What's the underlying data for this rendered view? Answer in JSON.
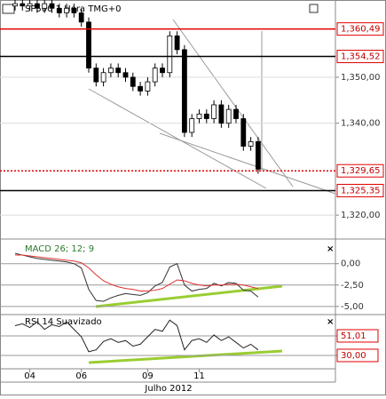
{
  "chart_data": [
    {
      "type": "candlestick",
      "title": "SP500 1 Hora TMG+0",
      "x_caption": "Julho 2012",
      "categories": [
        null,
        null,
        "04",
        null,
        null,
        null,
        null,
        null,
        null,
        "06",
        null,
        null,
        null,
        null,
        null,
        null,
        null,
        null,
        "09",
        null,
        null,
        null,
        null,
        null,
        null,
        "11",
        null,
        null,
        null,
        null,
        null,
        null,
        null,
        null
      ],
      "open": [
        1365.5,
        1366,
        1365.5,
        1366,
        1365,
        1366,
        1365,
        1364,
        1365,
        1364,
        1362,
        1352,
        1349,
        1351,
        1352,
        1351,
        1350,
        1348,
        1347,
        1349,
        1352,
        1351,
        1359,
        1356,
        1338,
        1341,
        1342,
        1341,
        1344,
        1340,
        1343,
        1341,
        1335,
        1336
      ],
      "high": [
        1367,
        1367,
        1367,
        1367,
        1367,
        1367,
        1366,
        1366,
        1366,
        1365,
        1363,
        1353,
        1352,
        1353,
        1353,
        1352,
        1351,
        1349,
        1350,
        1353,
        1353,
        1360,
        1360,
        1357,
        1342,
        1343,
        1343,
        1345,
        1345,
        1344,
        1344,
        1342,
        1337,
        1337
      ],
      "low": [
        1364.5,
        1364.5,
        1364.5,
        1364,
        1364,
        1364,
        1363,
        1363,
        1363,
        1361,
        1351,
        1348,
        1348,
        1350,
        1350,
        1349,
        1347,
        1346,
        1346,
        1348,
        1350,
        1350,
        1355,
        1337,
        1337,
        1340,
        1340,
        1340,
        1339,
        1339,
        1340,
        1334,
        1334,
        1329
      ],
      "close": [
        1366,
        1365.5,
        1366,
        1365,
        1366,
        1365,
        1364,
        1365,
        1364,
        1362,
        1352,
        1349,
        1351,
        1352,
        1351,
        1350,
        1348,
        1347,
        1349,
        1352,
        1351,
        1359,
        1356,
        1338,
        1341,
        1342,
        1341,
        1344,
        1340,
        1343,
        1341,
        1335,
        1336,
        1330
      ],
      "ylim": [
        1315,
        1366.8
      ],
      "yticks": [
        {
          "value": 1350,
          "label": "1,350,00"
        },
        {
          "value": 1340,
          "label": "1,340,00"
        },
        {
          "value": 1320,
          "label": "1,320,00"
        }
      ],
      "levels": [
        {
          "value": 1360.49,
          "label": "1,360,49",
          "color": "#e00000",
          "style": "solid"
        },
        {
          "value": 1354.52,
          "label": "1,354,52",
          "color": "#000000",
          "style": "solid"
        },
        {
          "value": 1329.65,
          "label": "1,329,65",
          "color": "#e00000",
          "style": "dotted"
        },
        {
          "value": 1325.35,
          "label": "1,325,35",
          "color": "#000000",
          "style": "solid"
        }
      ]
    },
    {
      "type": "line",
      "title": "MACD 26; 12; 9",
      "ylim": [
        -5.74,
        2.77
      ],
      "yticks": [
        {
          "value": 0,
          "label": "0,00"
        },
        {
          "value": -2.5,
          "label": "-2,50"
        },
        {
          "value": -5,
          "label": "-5,00"
        }
      ],
      "series": [
        {
          "color": "#333333",
          "values": [
            1.2,
            1.0,
            0.8,
            0.6,
            0.5,
            0.4,
            0.3,
            0.2,
            0.0,
            -0.5,
            -3.0,
            -4.3,
            -4.4,
            -4.0,
            -3.7,
            -3.5,
            -3.6,
            -3.7,
            -3.4,
            -2.6,
            -2.2,
            -0.4,
            0.0,
            -2.5,
            -3.2,
            -3.0,
            -2.9,
            -2.3,
            -2.6,
            -2.2,
            -2.3,
            -3.1,
            -3.2,
            -3.9
          ]
        },
        {
          "color": "#e03030",
          "values": [
            1.0,
            1.0,
            0.9,
            0.8,
            0.7,
            0.6,
            0.5,
            0.4,
            0.3,
            0.1,
            -0.5,
            -1.3,
            -2.0,
            -2.4,
            -2.7,
            -2.9,
            -3.0,
            -3.2,
            -3.2,
            -3.1,
            -2.9,
            -2.4,
            -1.9,
            -2.0,
            -2.3,
            -2.5,
            -2.6,
            -2.5,
            -2.5,
            -2.4,
            -2.4,
            -2.5,
            -2.7,
            -2.9
          ]
        }
      ]
    },
    {
      "type": "line",
      "title": "RSI 14 Suavizado",
      "ylim": [
        16.6,
        72
      ],
      "yticks": [
        {
          "value": 51.01,
          "label": "51,01"
        },
        {
          "value": 30,
          "label": "30,00"
        }
      ],
      "series": [
        {
          "color": "#222222",
          "values": [
            62,
            64,
            60,
            66,
            58,
            63,
            61,
            66,
            58,
            50,
            34,
            36,
            45,
            48,
            44,
            46,
            40,
            42,
            50,
            58,
            56,
            68,
            62,
            36,
            46,
            48,
            44,
            52,
            46,
            50,
            44,
            38,
            42,
            36
          ]
        }
      ]
    }
  ]
}
